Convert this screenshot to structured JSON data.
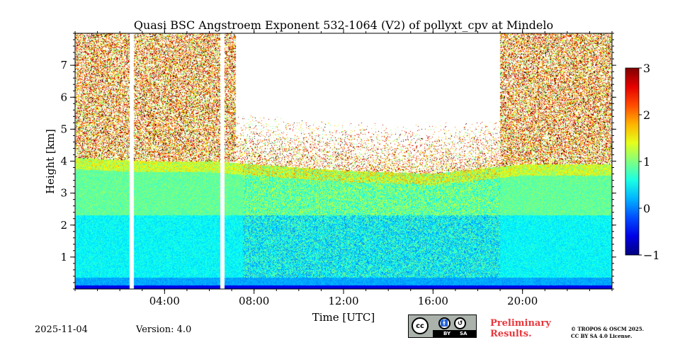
{
  "chart_data": {
    "type": "heatmap",
    "title": "Quasi BSC Angstroem Exponent 532-1064 (V2) of pollyxt_cpv at Mindelo",
    "xlabel": "Time [UTC]",
    "ylabel": "Height [km]",
    "xlim_hours": [
      0,
      24
    ],
    "ylim_km": [
      0,
      8
    ],
    "x_ticks": [
      {
        "value": 4,
        "label": "04:00"
      },
      {
        "value": 8,
        "label": "08:00"
      },
      {
        "value": 12,
        "label": "12:00"
      },
      {
        "value": 16,
        "label": "16:00"
      },
      {
        "value": 20,
        "label": "20:00"
      }
    ],
    "y_ticks": [
      {
        "value": 1,
        "label": "1"
      },
      {
        "value": 2,
        "label": "2"
      },
      {
        "value": 3,
        "label": "3"
      },
      {
        "value": 4,
        "label": "4"
      },
      {
        "value": 5,
        "label": "5"
      },
      {
        "value": 6,
        "label": "6"
      },
      {
        "value": 7,
        "label": "7"
      }
    ],
    "colorbar": {
      "range": [
        -1,
        3
      ],
      "ticks": [
        {
          "value": 3,
          "label": "3"
        },
        {
          "value": 2,
          "label": "2"
        },
        {
          "value": 1,
          "label": "1"
        },
        {
          "value": 0,
          "label": "0"
        },
        {
          "value": -1,
          "label": "−1"
        }
      ],
      "colormap": "jet"
    },
    "data_gaps_hours": [
      [
        2.45,
        2.62
      ],
      [
        6.5,
        6.68
      ]
    ],
    "aerosol_layer": {
      "top_km_by_time": [
        [
          0,
          4.1
        ],
        [
          3,
          4.0
        ],
        [
          6,
          4.0
        ],
        [
          8,
          3.9
        ],
        [
          12,
          3.7
        ],
        [
          16,
          3.6
        ],
        [
          20,
          3.9
        ],
        [
          24,
          3.9
        ]
      ],
      "typical_value_lower": 0.5,
      "typical_value_upper": 0.9
    },
    "surface_layer_value": -0.6
  },
  "footer": {
    "date": "2025-11-04",
    "version": "Version: 4.0",
    "license_badge": {
      "cc": "cc",
      "by": "BY",
      "sa": "SA"
    },
    "preliminary_line1": "Preliminary",
    "preliminary_line2": "Results.",
    "copyright_line1": "© TROPOS & OSCM 2025.",
    "copyright_line2": "CC BY SA 4.0 License."
  }
}
